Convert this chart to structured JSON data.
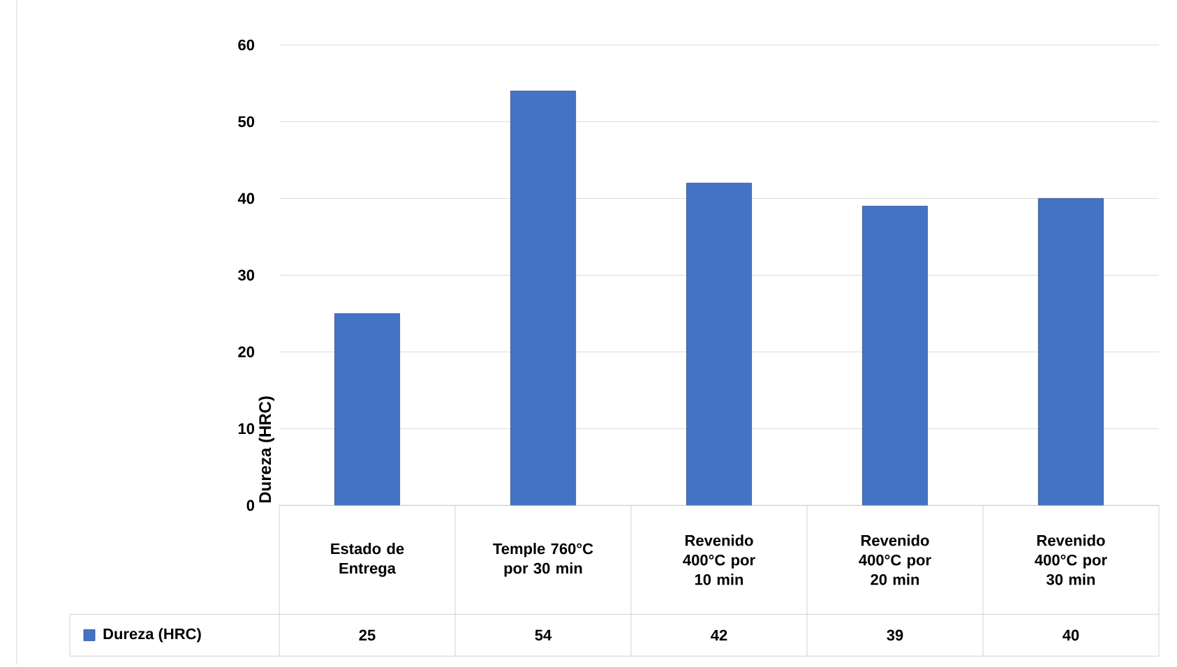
{
  "chart_data": {
    "type": "bar",
    "ylabel": "Dureza (HRC)",
    "categories": [
      "Estado de Entrega",
      "Temple 760°C por 30 min",
      "Revenido 400°C por 10 min",
      "Revenido 400°C por 20 min",
      "Revenido 400°C por 30 min"
    ],
    "series": [
      {
        "name": "Dureza (HRC)",
        "color": "#4472c4",
        "values": [
          25,
          54,
          42,
          39,
          40
        ]
      }
    ],
    "ylim": [
      0,
      60
    ],
    "yticks": [
      0,
      10,
      20,
      30,
      40,
      50,
      60
    ],
    "grid": "y",
    "data_labels": true,
    "legend": "bottom"
  }
}
